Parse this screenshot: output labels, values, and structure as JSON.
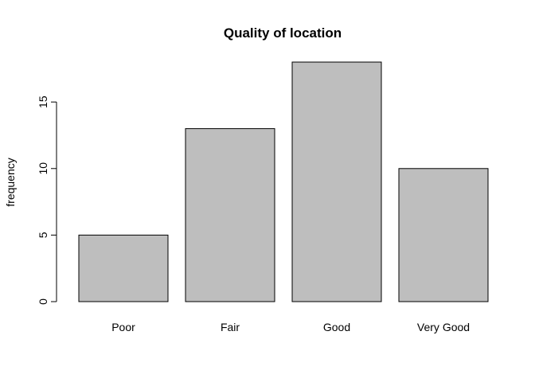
{
  "chart_data": {
    "type": "bar",
    "title": "Quality of location",
    "xlabel": "",
    "ylabel": "frequency",
    "categories": [
      "Poor",
      "Fair",
      "Good",
      "Very Good"
    ],
    "values": [
      5,
      13,
      18,
      10
    ],
    "ylim": [
      0,
      18
    ],
    "yticks": [
      0,
      5,
      10,
      15
    ],
    "bar_color": "#bebebe",
    "border_color": "#000000",
    "grid": false,
    "legend": "none"
  }
}
